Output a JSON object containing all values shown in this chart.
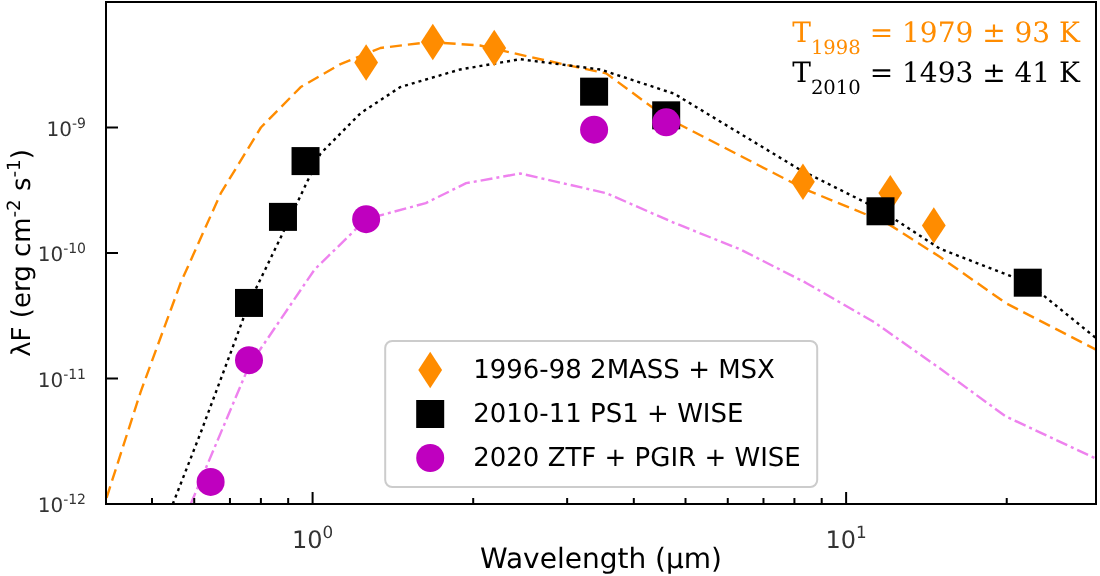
{
  "chart_data": {
    "type": "scatter",
    "xlabel": "Wavelength (μm)",
    "ylabel": "λF (erg cm$^{-2}$ s$^{-1}$)",
    "log": "xy",
    "legend": "bottom",
    "xlim": [
      0.41,
      29.4
    ],
    "ylim": [
      1e-12,
      1e-08
    ],
    "xticks": [
      {
        "value": 0.5,
        "label": null
      },
      {
        "value": 0.6,
        "label": null
      },
      {
        "value": 0.7,
        "label": null
      },
      {
        "value": 0.8,
        "label": null
      },
      {
        "value": 0.9,
        "label": null
      },
      {
        "value": 1,
        "label": "10$^{0}$"
      },
      {
        "value": 2,
        "label": null
      },
      {
        "value": 3,
        "label": null
      },
      {
        "value": 4,
        "label": null
      },
      {
        "value": 5,
        "label": null
      },
      {
        "value": 6,
        "label": null
      },
      {
        "value": 7,
        "label": null
      },
      {
        "value": 8,
        "label": null
      },
      {
        "value": 9,
        "label": null
      },
      {
        "value": 10,
        "label": "10$^{1}$"
      },
      {
        "value": 20,
        "label": null
      }
    ],
    "yticks": [
      {
        "value": 1e-12,
        "label": "10$^{-12}$"
      },
      {
        "value": 1e-11,
        "label": "10$^{-11}$"
      },
      {
        "value": 1e-10,
        "label": "10$^{-10}$"
      },
      {
        "value": 1e-09,
        "label": "10$^{-9}$"
      }
    ],
    "annotations": [
      "T$_{1998}$ = 1979 ± 93 K",
      "T$_{2010}$ = 1493 ± 41 K"
    ],
    "series": [
      {
        "type": "line",
        "color": "#ff8c00",
        "line_style": "dashed",
        "x": [
          0.411,
          0.476,
          0.566,
          0.673,
          0.8,
          0.95,
          1.128,
          1.34,
          1.66,
          2.06,
          2.67,
          3.55,
          4.6,
          8.4,
          11.9,
          15.0,
          19.9,
          29.4
        ],
        "values": [
          1.12e-12,
          7.8e-12,
          5.8e-11,
          3e-10,
          1e-09,
          2.1e-09,
          3.2e-09,
          4.3e-09,
          4.8e-09,
          4.5e-09,
          3.5e-09,
          2.7e-09,
          1.2e-09,
          3.2e-10,
          1.74e-10,
          9.3e-11,
          4e-11,
          1.7e-11
        ]
      },
      {
        "type": "line",
        "color": "#000000",
        "line_style": "dotted",
        "x": [
          0.547,
          0.617,
          0.702,
          0.76,
          0.88,
          1.035,
          1.23,
          1.46,
          1.89,
          2.45,
          3.46,
          4.76,
          8.2,
          11.6,
          15.0,
          21.9,
          29.4
        ],
        "values": [
          1e-12,
          3.7e-12,
          1.6e-11,
          4e-11,
          1.45e-10,
          6.2e-10,
          1.3e-09,
          2.1e-09,
          2.9e-09,
          3.5e-09,
          2.9e-09,
          1.86e-09,
          4.6e-10,
          2.2e-10,
          1.08e-10,
          5.8e-11,
          2.1e-11
        ]
      },
      {
        "type": "line",
        "color": "#ee82ee",
        "line_style": "dashdot",
        "x": [
          0.591,
          0.76,
          1.009,
          1.26,
          1.63,
          1.94,
          2.45,
          3.55,
          4.76,
          6.33,
          8.4,
          11.3,
          15.0,
          19.9,
          29.4
        ],
        "values": [
          1e-12,
          1.26e-11,
          7.4e-11,
          1.86e-10,
          2.5e-10,
          3.6e-10,
          4.3e-10,
          3e-10,
          1.74e-10,
          1.07e-10,
          5.8e-11,
          2.8e-11,
          1.2e-11,
          5e-12,
          2.3e-12
        ]
      },
      {
        "name": "1996-98 2MASS + MSX",
        "color": "#ff8c00",
        "marker": "diamond",
        "x": [
          1.26,
          1.68,
          2.19,
          8.3,
          12.1,
          14.6
        ],
        "values": [
          3.3e-09,
          4.8e-09,
          4.3e-09,
          3.7e-10,
          3e-10,
          1.66e-10
        ]
      },
      {
        "name": "2010-11 PS1 + WISE",
        "color": "#000000",
        "marker": "square",
        "x": [
          0.76,
          0.88,
          0.97,
          3.37,
          4.6,
          11.6,
          21.9
        ],
        "values": [
          4e-11,
          1.94e-10,
          5.4e-10,
          1.93e-09,
          1.25e-09,
          2.15e-10,
          5.8e-11
        ]
      },
      {
        "name": "2020 ZTF + PGIR + WISE",
        "color": "#bf00bf",
        "marker": "circle",
        "x": [
          0.644,
          0.76,
          1.26,
          3.37,
          4.6
        ],
        "values": [
          1.5e-12,
          1.4e-11,
          1.86e-10,
          9.6e-10,
          1.1e-09
        ]
      }
    ]
  }
}
